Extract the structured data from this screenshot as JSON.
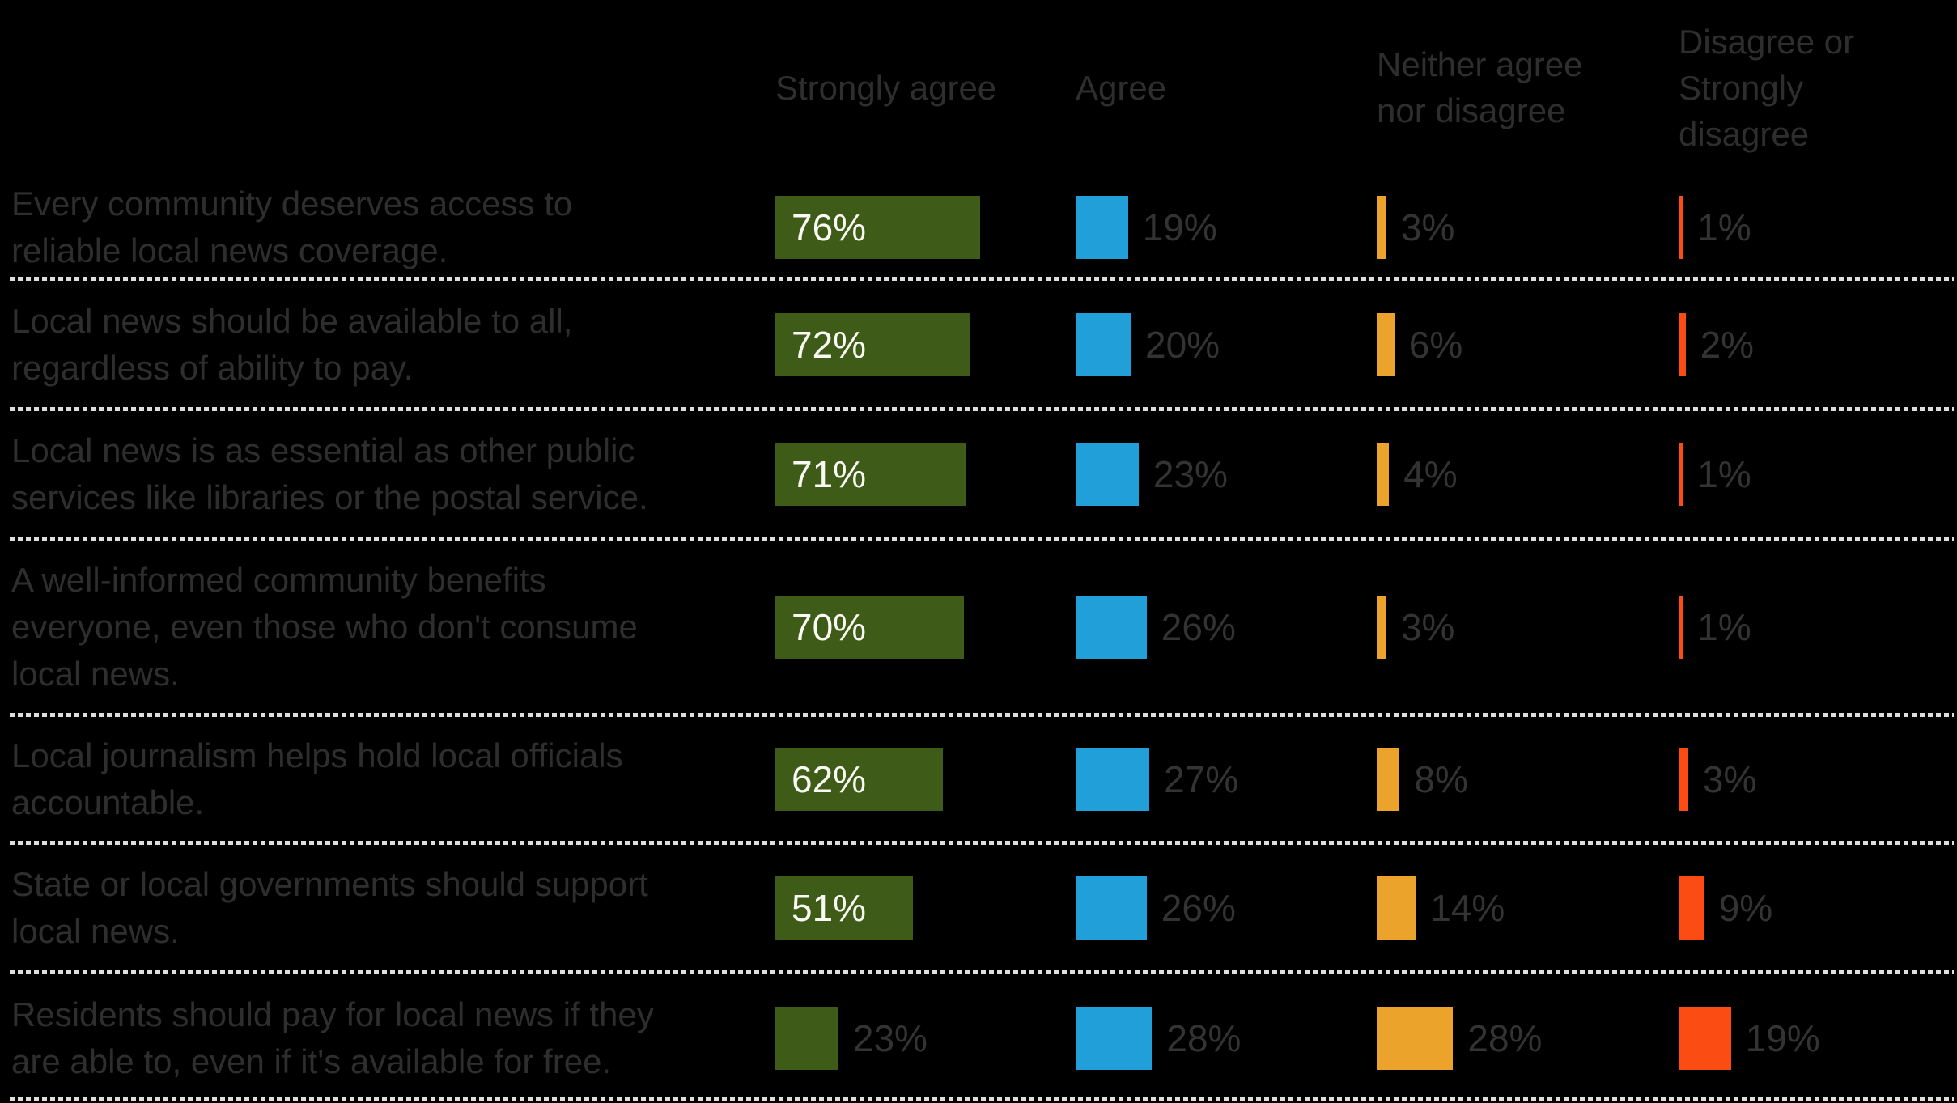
{
  "chart_data": {
    "type": "bar",
    "orientation": "horizontal",
    "unit": "%",
    "title": "",
    "legend_position": "top-column-headers",
    "grid": "dotted-row-separators",
    "columns": [
      {
        "label": "Strongly agree",
        "color": "#3e5c17"
      },
      {
        "label": "Agree",
        "color": "#219fd9"
      },
      {
        "label": "Neither agree\nnor disagree",
        "color": "#eca32b"
      },
      {
        "label": "Disagree or\nStrongly\ndisagree",
        "color": "#fb4c14"
      }
    ],
    "rows": [
      {
        "statement": "Every community deserves access to\nreliable local news coverage.",
        "values": [
          76,
          19,
          3,
          1
        ]
      },
      {
        "statement": "Local news should be available to all,\nregardless of ability to pay.",
        "values": [
          72,
          20,
          6,
          2
        ]
      },
      {
        "statement": "Local news is as essential as other public\nservices like libraries or the postal service.",
        "values": [
          71,
          23,
          4,
          1
        ]
      },
      {
        "statement": "A well-informed community benefits\neveryone, even those who don't consume\nlocal news.",
        "values": [
          70,
          26,
          3,
          1
        ]
      },
      {
        "statement": "Local journalism helps hold local officials\naccountable.",
        "values": [
          62,
          27,
          8,
          3
        ]
      },
      {
        "statement": "State or local governments should support\nlocal news.",
        "values": [
          51,
          26,
          14,
          9
        ]
      },
      {
        "statement": "Residents should pay for local news if they\nare able to, even if it's available for free.",
        "values": [
          23,
          28,
          28,
          19
        ]
      }
    ]
  },
  "styles": {
    "background": "#000000",
    "muted_text": "#2e2e2e",
    "value_text": "#333333",
    "bar_inner_text": "#fafaf5",
    "separator_dots": "#dedede"
  }
}
